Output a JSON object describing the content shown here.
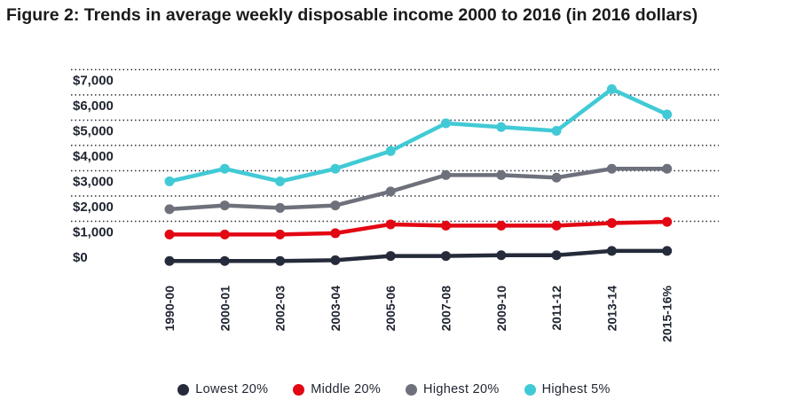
{
  "chart_data": {
    "type": "line",
    "title": "Figure 2: Trends in average weekly disposable income 2000 to 2016 (in 2016 dollars)",
    "categories": [
      "1990-00",
      "2000-01",
      "2002-03",
      "2003-04",
      "2005-06",
      "2007-08",
      "2009-10",
      "2011-12",
      "2013-14",
      "2015-16%"
    ],
    "y_ticks": [
      "$0",
      "$1,000",
      "$2,000",
      "$3,000",
      "$4,000",
      "$5,000",
      "$6,000",
      "$7,000"
    ],
    "ylim": [
      0,
      7000
    ],
    "grid": "dotted horizontal",
    "legend_position": "bottom",
    "series": [
      {
        "name": "Lowest 20%",
        "color": "#252b3a",
        "values": [
          -150,
          -150,
          -150,
          -120,
          50,
          50,
          80,
          80,
          250,
          250
        ]
      },
      {
        "name": "Middle 20%",
        "color": "#e30613",
        "values": [
          900,
          900,
          900,
          950,
          1300,
          1250,
          1250,
          1250,
          1350,
          1400
        ]
      },
      {
        "name": "Highest 20%",
        "color": "#6e717b",
        "values": [
          1900,
          2050,
          1950,
          2050,
          2600,
          3250,
          3250,
          3150,
          3500,
          3500
        ]
      },
      {
        "name": "Highest 5%",
        "color": "#41cad6",
        "values": [
          3000,
          3500,
          3000,
          3500,
          4200,
          5300,
          5150,
          5000,
          6650,
          5650
        ]
      }
    ]
  }
}
